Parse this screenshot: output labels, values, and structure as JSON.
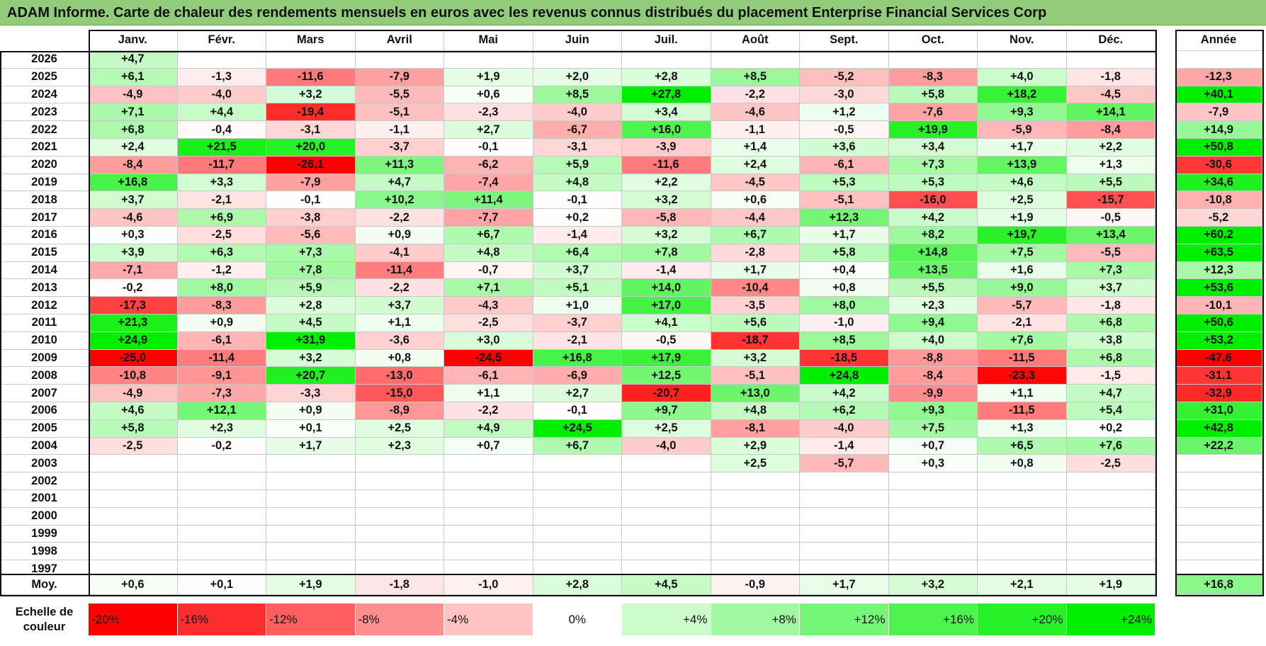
{
  "title": "ADAM Informe. Carte de chaleur des rendements mensuels en euros avec les revenus connus distribués du placement Enterprise Financial Services Corp",
  "colors": {
    "title_bg": "#92cc7a",
    "negative_max": "#ff0000",
    "positive_max": "#00ee00",
    "neutral": "#ffffff"
  },
  "chart_data": {
    "type": "heatmap",
    "title": "ADAM Informe. Carte de chaleur des rendements mensuels en euros avec les revenus connus distribués du placement Enterprise Financial Services Corp",
    "columns": [
      "Janv.",
      "Févr.",
      "Mars",
      "Avril",
      "Mai",
      "Juin",
      "Juil.",
      "Août",
      "Sept.",
      "Oct.",
      "Nov.",
      "Déc."
    ],
    "year_column_label": "Année",
    "rows": [
      {
        "year": "2026",
        "months": [
          "+4,7",
          "",
          "",
          "",
          "",
          "",
          "",
          "",
          "",
          "",
          "",
          ""
        ],
        "annual": ""
      },
      {
        "year": "2025",
        "months": [
          "+6,1",
          "-1,3",
          "-11,6",
          "-7,9",
          "+1,9",
          "+2,0",
          "+2,8",
          "+8,5",
          "-5,2",
          "-8,3",
          "+4,0",
          "-1,8"
        ],
        "annual": "-12,3"
      },
      {
        "year": "2024",
        "months": [
          "-4,9",
          "-4,0",
          "+3,2",
          "-5,5",
          "+0,6",
          "+8,5",
          "+27,8",
          "-2,2",
          "-3,0",
          "+5,8",
          "+18,2",
          "-4,5"
        ],
        "annual": "+40,1"
      },
      {
        "year": "2023",
        "months": [
          "+7,1",
          "+4,4",
          "-19,4",
          "-5,1",
          "-2,3",
          "-4,0",
          "+3,4",
          "-4,6",
          "+1,2",
          "-7,6",
          "+9,3",
          "+14,1"
        ],
        "annual": "-7,9"
      },
      {
        "year": "2022",
        "months": [
          "+6,8",
          "-0,4",
          "-3,1",
          "-1,1",
          "+2,7",
          "-6,7",
          "+16,0",
          "-1,1",
          "-0,5",
          "+19,9",
          "-5,9",
          "-8,4"
        ],
        "annual": "+14,9"
      },
      {
        "year": "2021",
        "months": [
          "+2,4",
          "+21,5",
          "+20,0",
          "-3,7",
          "-0,1",
          "-3,1",
          "-3,9",
          "+1,4",
          "+3,6",
          "+3,4",
          "+1,7",
          "+2,2"
        ],
        "annual": "+50,8"
      },
      {
        "year": "2020",
        "months": [
          "-8,4",
          "-11,7",
          "-26,1",
          "+11,3",
          "-6,2",
          "+5,9",
          "-11,6",
          "+2,4",
          "-6,1",
          "+7,3",
          "+13,9",
          "+1,3"
        ],
        "annual": "-30,6"
      },
      {
        "year": "2019",
        "months": [
          "+16,8",
          "+3,3",
          "-7,9",
          "+4,7",
          "-7,4",
          "+4,8",
          "+2,2",
          "-4,5",
          "+5,3",
          "+5,3",
          "+4,6",
          "+5,5"
        ],
        "annual": "+34,6"
      },
      {
        "year": "2018",
        "months": [
          "+3,7",
          "-2,1",
          "-0,1",
          "+10,2",
          "+11,4",
          "-0,1",
          "+3,2",
          "+0,6",
          "-5,1",
          "-16,0",
          "+2,5",
          "-15,7"
        ],
        "annual": "-10,8"
      },
      {
        "year": "2017",
        "months": [
          "-4,6",
          "+6,9",
          "-3,8",
          "-2,2",
          "-7,7",
          "+0,2",
          "-5,8",
          "-4,4",
          "+12,3",
          "+4,2",
          "+1,9",
          "-0,5"
        ],
        "annual": "-5,2"
      },
      {
        "year": "2016",
        "months": [
          "+0,3",
          "-2,5",
          "-5,6",
          "+0,9",
          "+6,7",
          "-1,4",
          "+3,2",
          "+6,7",
          "+1,7",
          "+8,2",
          "+19,7",
          "+13,4"
        ],
        "annual": "+60,2"
      },
      {
        "year": "2015",
        "months": [
          "+3,9",
          "+6,3",
          "+7,3",
          "-4,1",
          "+4,8",
          "+6,4",
          "+7,8",
          "-2,8",
          "+5,8",
          "+14,8",
          "+7,5",
          "-5,5"
        ],
        "annual": "+63,5"
      },
      {
        "year": "2014",
        "months": [
          "-7,1",
          "-1,2",
          "+7,8",
          "-11,4",
          "-0,7",
          "+3,7",
          "-1,4",
          "+1,7",
          "+0,4",
          "+13,5",
          "+1,6",
          "+7,3"
        ],
        "annual": "+12,3"
      },
      {
        "year": "2013",
        "months": [
          "-0,2",
          "+8,0",
          "+5,9",
          "-2,2",
          "+7,1",
          "+5,1",
          "+14,0",
          "-10,4",
          "+0,8",
          "+5,5",
          "+9,0",
          "+3,7"
        ],
        "annual": "+53,6"
      },
      {
        "year": "2012",
        "months": [
          "-17,3",
          "-8,3",
          "+2,8",
          "+3,7",
          "-4,3",
          "+1,0",
          "+17,0",
          "-3,5",
          "+8,0",
          "+2,3",
          "-5,7",
          "-1,8"
        ],
        "annual": "-10,1"
      },
      {
        "year": "2011",
        "months": [
          "+21,3",
          "+0,9",
          "+4,5",
          "+1,1",
          "-2,5",
          "-3,7",
          "+4,1",
          "+5,6",
          "-1,0",
          "+9,4",
          "-2,1",
          "+6,8"
        ],
        "annual": "+50,6"
      },
      {
        "year": "2010",
        "months": [
          "+24,9",
          "-6,1",
          "+31,9",
          "-3,6",
          "+3,0",
          "-2,1",
          "-0,5",
          "-18,7",
          "+8,5",
          "+4,0",
          "+7,6",
          "+3,8"
        ],
        "annual": "+53,2"
      },
      {
        "year": "2009",
        "months": [
          "-25,0",
          "-11,4",
          "+3,2",
          "+0,8",
          "-24,5",
          "+16,8",
          "+17,9",
          "+3,2",
          "-18,5",
          "-8,8",
          "-11,5",
          "+6,8"
        ],
        "annual": "-47,6"
      },
      {
        "year": "2008",
        "months": [
          "-10,8",
          "-9,1",
          "+20,7",
          "-13,0",
          "-6,1",
          "-6,9",
          "+12,5",
          "-5,1",
          "+24,8",
          "-8,4",
          "-23,3",
          "-1,5"
        ],
        "annual": "-31,1"
      },
      {
        "year": "2007",
        "months": [
          "-4,9",
          "-7,3",
          "-3,3",
          "-15,0",
          "+1,1",
          "+2,7",
          "-20,7",
          "+13,0",
          "+4,2",
          "-9,9",
          "+1,1",
          "+4,7"
        ],
        "annual": "-32,9"
      },
      {
        "year": "2006",
        "months": [
          "+4,6",
          "+12,1",
          "+0,9",
          "-8,9",
          "-2,2",
          "-0,1",
          "+9,7",
          "+4,8",
          "+6,2",
          "+9,3",
          "-11,5",
          "+5,4"
        ],
        "annual": "+31,0"
      },
      {
        "year": "2005",
        "months": [
          "+5,8",
          "+2,3",
          "+0,1",
          "+2,5",
          "+4,9",
          "+24,5",
          "+2,5",
          "-8,1",
          "-4,0",
          "+7,5",
          "+1,3",
          "+0,2"
        ],
        "annual": "+42,8"
      },
      {
        "year": "2004",
        "months": [
          "-2,5",
          "-0,2",
          "+1,7",
          "+2,3",
          "+0,7",
          "+6,7",
          "-4,0",
          "+2,9",
          "-1,4",
          "+0,7",
          "+6,5",
          "+7,6"
        ],
        "annual": "+22,2"
      },
      {
        "year": "2003",
        "months": [
          "",
          "",
          "",
          "",
          "",
          "",
          "",
          "+2,5",
          "-5,7",
          "+0,3",
          "+0,8",
          "-2,5"
        ],
        "annual": ""
      },
      {
        "year": "2002",
        "months": [
          "",
          "",
          "",
          "",
          "",
          "",
          "",
          "",
          "",
          "",
          "",
          ""
        ],
        "annual": ""
      },
      {
        "year": "2001",
        "months": [
          "",
          "",
          "",
          "",
          "",
          "",
          "",
          "",
          "",
          "",
          "",
          ""
        ],
        "annual": ""
      },
      {
        "year": "2000",
        "months": [
          "",
          "",
          "",
          "",
          "",
          "",
          "",
          "",
          "",
          "",
          "",
          ""
        ],
        "annual": ""
      },
      {
        "year": "1999",
        "months": [
          "",
          "",
          "",
          "",
          "",
          "",
          "",
          "",
          "",
          "",
          "",
          ""
        ],
        "annual": ""
      },
      {
        "year": "1998",
        "months": [
          "",
          "",
          "",
          "",
          "",
          "",
          "",
          "",
          "",
          "",
          "",
          ""
        ],
        "annual": ""
      },
      {
        "year": "1997",
        "months": [
          "",
          "",
          "",
          "",
          "",
          "",
          "",
          "",
          "",
          "",
          "",
          ""
        ],
        "annual": ""
      }
    ],
    "average": {
      "label": "Moy.",
      "months": [
        "+0,6",
        "+0,1",
        "+1,9",
        "-1,8",
        "-1,0",
        "+2,8",
        "+4,5",
        "-0,9",
        "+1,7",
        "+3,2",
        "+2,1",
        "+1,9"
      ],
      "annual": "+16,8"
    },
    "color_scale": {
      "label": "Echelle de couleur",
      "steps": [
        "-20%",
        "-16%",
        "-12%",
        "-8%",
        "-4%",
        "0%",
        "+4%",
        "+8%",
        "+12%",
        "+16%",
        "+20%",
        "+24%"
      ]
    }
  }
}
